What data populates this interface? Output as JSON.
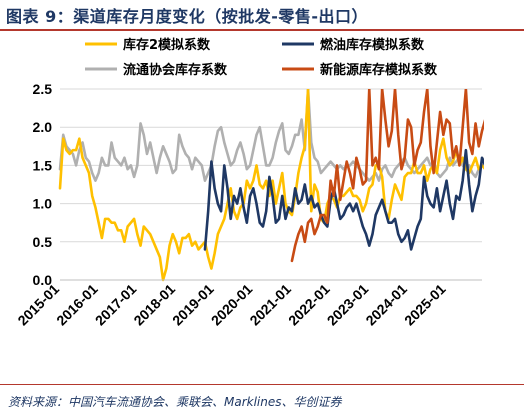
{
  "page": {
    "title": "图表 9：渠道库存月度变化（按批发-零售-出口）",
    "source": "资料来源：中国汽车流通协会、乘联会、Marklines、华创证券"
  },
  "chart_data": {
    "type": "line",
    "title": "",
    "xlabel": "",
    "ylabel": "",
    "ylim": [
      0,
      2.5
    ],
    "yticks": [
      "0.0",
      "0.5",
      "1.0",
      "1.5",
      "2.0",
      "2.5"
    ],
    "x_start": "2015-01",
    "x_end": "2025-12",
    "xticks": [
      "2015-01",
      "2016-01",
      "2017-01",
      "2018-01",
      "2019-01",
      "2020-01",
      "2021-01",
      "2022-01",
      "2023-01",
      "2024-01",
      "2025-01"
    ],
    "legend": "top, two columns",
    "grid": "horizontal",
    "series": [
      {
        "name": "库存2模拟系数",
        "color": "#ffc000",
        "start": "2015-01",
        "values": [
          1.2,
          1.85,
          1.7,
          1.65,
          1.7,
          1.7,
          1.85,
          1.6,
          1.5,
          1.4,
          1.1,
          0.95,
          0.75,
          0.55,
          0.8,
          0.8,
          0.75,
          0.75,
          0.65,
          0.65,
          0.5,
          0.7,
          0.75,
          0.8,
          0.6,
          0.45,
          0.7,
          0.65,
          0.6,
          0.5,
          0.4,
          0.3,
          0.0,
          0.15,
          0.45,
          0.6,
          0.5,
          0.35,
          0.55,
          0.55,
          0.6,
          0.45,
          0.5,
          0.4,
          0.45,
          0.5,
          0.3,
          0.15,
          0.35,
          0.6,
          0.7,
          0.8,
          1.0,
          1.2,
          0.9,
          0.8,
          0.95,
          1.0,
          1.3,
          1.2,
          1.3,
          1.5,
          1.25,
          1.2,
          1.3,
          1.1,
          1.3,
          1.0,
          1.2,
          1.4,
          1.0,
          0.9,
          0.85,
          1.1,
          1.4,
          1.6,
          1.75,
          2.6,
          0.9,
          1.25,
          1.15,
          0.8,
          0.75,
          1.0,
          1.1,
          1.05,
          0.95,
          1.1,
          1.1,
          1.15,
          1.2,
          1.1,
          1.1,
          1.05,
          0.9,
          1.0,
          1.2,
          1.25,
          1.5,
          1.5,
          1.35,
          0.9,
          0.8,
          1.05,
          1.25,
          1.15,
          1.05,
          1.35,
          1.4,
          1.4,
          1.55,
          1.4,
          1.4,
          1.5,
          1.3,
          1.45,
          1.5,
          1.4,
          1.7,
          1.85,
          1.6,
          1.5,
          1.55,
          1.7,
          1.5,
          1.6,
          1.45,
          1.4,
          1.5,
          1.6,
          1.45,
          1.5,
          1.45,
          1.3,
          1.4,
          1.5,
          1.55,
          1.6,
          1.5,
          1.5,
          1.5,
          1.45,
          1.4,
          1.35,
          1.35,
          1.4,
          1.35,
          1.0
        ]
      },
      {
        "name": "燃油库存模拟系数",
        "color": "#1f3864",
        "start": "2018-10",
        "values": [
          0.4,
          0.9,
          1.55,
          1.2,
          1.0,
          0.9,
          1.5,
          1.2,
          0.8,
          1.1,
          1.0,
          1.2,
          0.95,
          0.75,
          1.1,
          1.2,
          1.0,
          0.75,
          0.7,
          0.9,
          1.35,
          1.1,
          0.75,
          0.8,
          1.1,
          0.8,
          0.95,
          0.9,
          1.2,
          1.0,
          1.05,
          1.25,
          1.0,
          1.1,
          0.95,
          1.0,
          0.85,
          0.75,
          0.7,
          1.05,
          1.2,
          1.0,
          0.8,
          0.85,
          0.95,
          1.0,
          0.9,
          1.0,
          0.85,
          0.7,
          0.6,
          0.45,
          0.6,
          0.85,
          0.95,
          1.05,
          0.9,
          0.75,
          0.75,
          0.8,
          0.6,
          0.5,
          0.55,
          0.65,
          0.4,
          0.55,
          0.7,
          0.8,
          1.35,
          1.1,
          1.0,
          0.95,
          1.2,
          0.9,
          1.1,
          1.3,
          1.0,
          0.8,
          1.1,
          1.05,
          1.3,
          1.7,
          1.25,
          0.9,
          1.1,
          1.25,
          1.6,
          1.5,
          1.2,
          1.3,
          1.45,
          1.65,
          1.5,
          1.7,
          1.4,
          1.1,
          1.05,
          1.2,
          1.4,
          1.3,
          1.15,
          1.45,
          1.5,
          1.25,
          1.0,
          1.05,
          0.8,
          0.85,
          1.0,
          1.25,
          1.5,
          1.1,
          1.15,
          1.15,
          1.35,
          1.05,
          0.8,
          0.7,
          0.95,
          1.2,
          1.05,
          0.75,
          0.7,
          0.7,
          0.75,
          0.85,
          0.7,
          0.7,
          0.55
        ]
      },
      {
        "name": "流通协会库存系数",
        "color": "#b0b0b0",
        "start": "2015-01",
        "values": [
          1.45,
          1.9,
          1.75,
          1.7,
          1.65,
          1.5,
          1.7,
          1.8,
          1.6,
          1.55,
          1.4,
          1.3,
          1.4,
          1.6,
          1.5,
          1.5,
          1.8,
          1.6,
          1.55,
          1.5,
          1.6,
          1.45,
          1.5,
          1.35,
          1.5,
          2.05,
          1.9,
          1.65,
          1.8,
          1.6,
          1.4,
          1.6,
          1.75,
          1.65,
          1.55,
          1.4,
          1.45,
          1.9,
          1.75,
          1.65,
          1.6,
          1.45,
          1.6,
          1.55,
          1.5,
          1.3,
          1.4,
          1.5,
          1.75,
          1.95,
          2.0,
          1.8,
          1.65,
          1.5,
          1.55,
          1.7,
          1.8,
          1.65,
          1.45,
          1.5,
          1.7,
          1.9,
          2.0,
          1.75,
          1.5,
          1.5,
          1.6,
          1.8,
          1.95,
          2.05,
          1.7,
          1.65,
          1.75,
          1.9,
          1.9,
          2.1,
          1.7,
          3.2,
          1.8,
          1.6,
          1.55,
          1.4,
          1.45,
          1.5,
          1.55,
          1.5,
          1.45,
          1.5,
          1.45,
          1.5,
          1.5,
          1.55,
          1.5,
          1.45,
          1.4,
          1.35,
          1.3,
          1.35,
          1.4,
          1.3,
          1.45,
          1.5,
          1.4,
          1.35,
          1.45,
          1.5,
          1.55,
          1.6,
          1.5,
          1.45,
          1.4,
          1.45,
          1.5,
          1.55,
          1.6,
          1.5,
          1.55,
          1.4,
          1.35,
          1.4,
          1.45,
          1.6,
          1.5,
          1.55,
          1.6,
          1.5,
          1.45,
          1.5,
          1.4,
          1.35,
          1.45,
          1.5,
          1.6,
          1.45,
          1.4,
          1.5,
          1.55,
          1.6,
          1.5,
          1.45,
          1.4,
          1.45,
          1.5,
          1.55,
          1.4
        ]
      },
      {
        "name": "新能源库存模拟系数",
        "color": "#c84b14",
        "start": "2021-01",
        "values": [
          0.25,
          0.45,
          0.6,
          0.7,
          0.5,
          0.75,
          0.8,
          0.6,
          0.7,
          0.85,
          0.85,
          0.75,
          1.3,
          1.1,
          1.5,
          1.05,
          1.3,
          1.55,
          1.4,
          1.2,
          1.6,
          1.45,
          1.25,
          1.3,
          2.6,
          1.5,
          1.6,
          1.45,
          2.5,
          2.1,
          1.75,
          1.95,
          2.5,
          1.9,
          1.45,
          1.6,
          2.1,
          2.0,
          1.5,
          1.7,
          1.8,
          2.2,
          2.5,
          1.75,
          1.4,
          1.8,
          2.2,
          1.9,
          2.1,
          2.05,
          1.6,
          1.75,
          1.5,
          2.0,
          2.6,
          1.8,
          1.65,
          2.05,
          1.75,
          1.95,
          2.1,
          1.85,
          1.55,
          2.05,
          2.5,
          1.75,
          1.65,
          2.2,
          2.6,
          2.05,
          2.0,
          1.8,
          1.95,
          1.9,
          1.7,
          1.75,
          1.7,
          1.3
        ]
      }
    ]
  }
}
